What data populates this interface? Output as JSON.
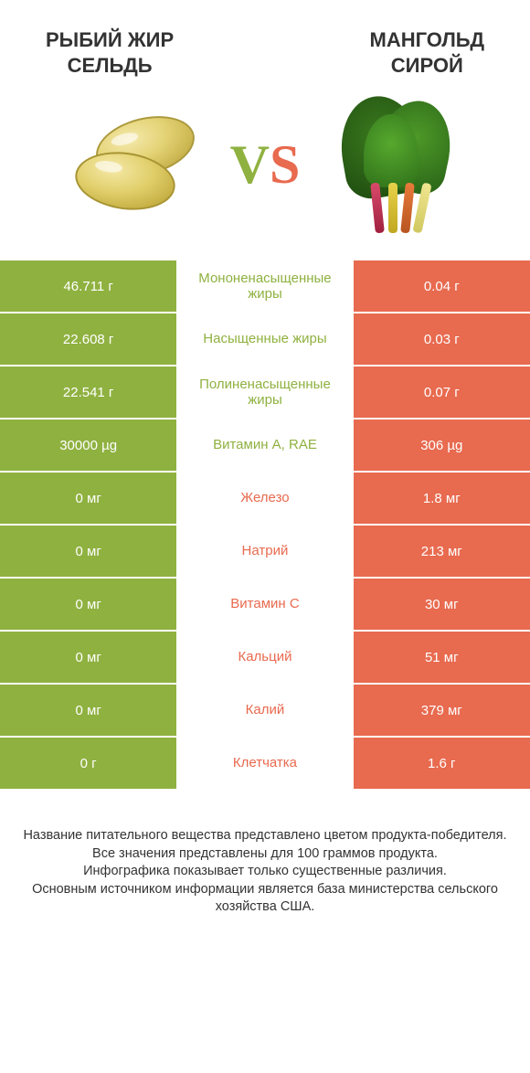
{
  "colors": {
    "green": "#8fb140",
    "orange": "#e86a4f",
    "text": "#333333",
    "background": "#ffffff"
  },
  "header": {
    "left_title": "РЫБИЙ ЖИР\nСЕЛЬДЬ",
    "right_title": "МАНГОЛЬД\nСИРОЙ",
    "vs_v": "V",
    "vs_s": "S"
  },
  "rows": [
    {
      "label": "Мононенасыщенные жиры",
      "left": "46.711 г",
      "right": "0.04 г",
      "winner": "left"
    },
    {
      "label": "Насыщенные жиры",
      "left": "22.608 г",
      "right": "0.03 г",
      "winner": "left"
    },
    {
      "label": "Полиненасыщенные жиры",
      "left": "22.541 г",
      "right": "0.07 г",
      "winner": "left"
    },
    {
      "label": "Витамин A, RAE",
      "left": "30000 µg",
      "right": "306 µg",
      "winner": "left"
    },
    {
      "label": "Железо",
      "left": "0 мг",
      "right": "1.8 мг",
      "winner": "right"
    },
    {
      "label": "Натрий",
      "left": "0 мг",
      "right": "213 мг",
      "winner": "right"
    },
    {
      "label": "Витамин C",
      "left": "0 мг",
      "right": "30 мг",
      "winner": "right"
    },
    {
      "label": "Кальций",
      "left": "0 мг",
      "right": "51 мг",
      "winner": "right"
    },
    {
      "label": "Калий",
      "left": "0 мг",
      "right": "379 мг",
      "winner": "right"
    },
    {
      "label": "Клетчатка",
      "left": "0 г",
      "right": "1.6 г",
      "winner": "right"
    }
  ],
  "footer": {
    "line1": "Название питательного вещества представлено цветом продукта-победителя.",
    "line2": "Все значения представлены для 100 граммов продукта.",
    "line3": "Инфографика показывает только существенные различия.",
    "line4": "Основным источником информации является база министерства сельского хозяйства США."
  }
}
